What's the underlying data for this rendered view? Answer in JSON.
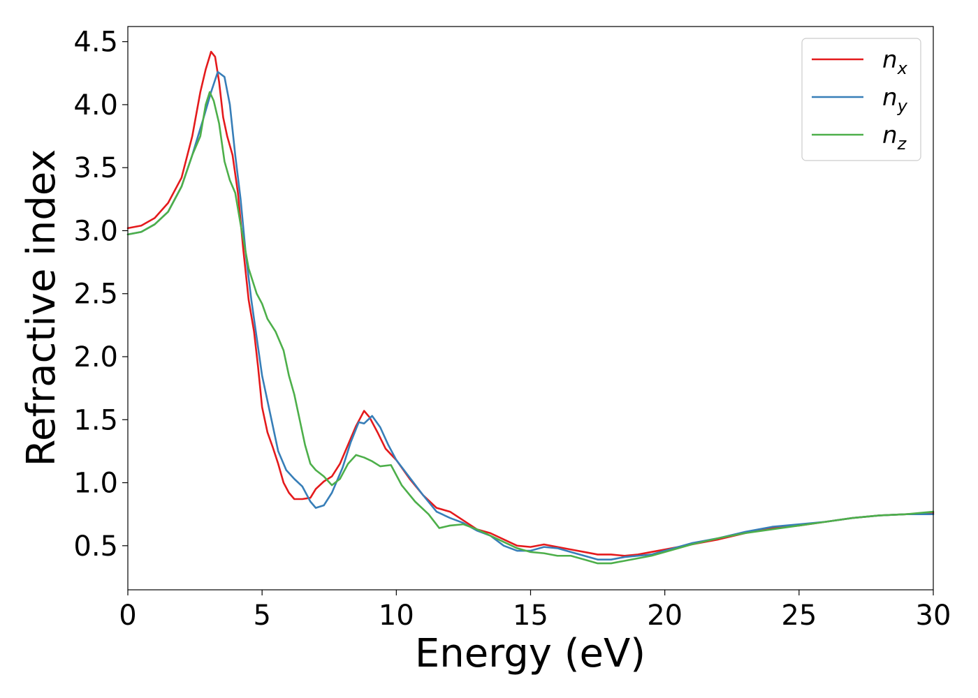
{
  "chart_data": {
    "type": "line",
    "title": "",
    "xlabel": "Energy (eV)",
    "ylabel": "Refractive index",
    "xlim": [
      0,
      30
    ],
    "ylim": [
      0.15,
      4.62
    ],
    "x_ticks": [
      0,
      5,
      10,
      15,
      20,
      25,
      30
    ],
    "y_ticks": [
      0.5,
      1.0,
      1.5,
      2.0,
      2.5,
      3.0,
      3.5,
      4.0,
      4.5
    ],
    "x_tick_labels": [
      "0",
      "5",
      "10",
      "15",
      "20",
      "25",
      "30"
    ],
    "y_tick_labels": [
      "0.5",
      "1.0",
      "1.5",
      "2.0",
      "2.5",
      "3.0",
      "3.5",
      "4.0",
      "4.5"
    ],
    "grid": false,
    "legend_position": "top-right",
    "series": [
      {
        "name": "n_x",
        "legend_base": "n",
        "legend_sub": "x",
        "color": "#e41a1c",
        "points": [
          [
            0,
            3.02
          ],
          [
            0.5,
            3.04
          ],
          [
            1,
            3.1
          ],
          [
            1.5,
            3.22
          ],
          [
            2,
            3.42
          ],
          [
            2.4,
            3.75
          ],
          [
            2.7,
            4.1
          ],
          [
            2.9,
            4.28
          ],
          [
            3.1,
            4.42
          ],
          [
            3.25,
            4.38
          ],
          [
            3.4,
            4.18
          ],
          [
            3.55,
            3.9
          ],
          [
            3.7,
            3.75
          ],
          [
            3.9,
            3.6
          ],
          [
            4.1,
            3.3
          ],
          [
            4.3,
            2.85
          ],
          [
            4.5,
            2.45
          ],
          [
            4.7,
            2.2
          ],
          [
            4.85,
            1.92
          ],
          [
            5.0,
            1.6
          ],
          [
            5.2,
            1.4
          ],
          [
            5.4,
            1.28
          ],
          [
            5.6,
            1.15
          ],
          [
            5.8,
            1.0
          ],
          [
            6.0,
            0.92
          ],
          [
            6.2,
            0.87
          ],
          [
            6.5,
            0.87
          ],
          [
            6.8,
            0.88
          ],
          [
            7.0,
            0.95
          ],
          [
            7.3,
            1.01
          ],
          [
            7.6,
            1.05
          ],
          [
            7.9,
            1.15
          ],
          [
            8.2,
            1.3
          ],
          [
            8.5,
            1.45
          ],
          [
            8.8,
            1.57
          ],
          [
            9.0,
            1.52
          ],
          [
            9.3,
            1.4
          ],
          [
            9.6,
            1.27
          ],
          [
            10.0,
            1.18
          ],
          [
            10.5,
            1.03
          ],
          [
            11.0,
            0.9
          ],
          [
            11.5,
            0.8
          ],
          [
            12.0,
            0.77
          ],
          [
            12.5,
            0.7
          ],
          [
            13.0,
            0.63
          ],
          [
            13.5,
            0.6
          ],
          [
            14.0,
            0.55
          ],
          [
            14.5,
            0.5
          ],
          [
            15.0,
            0.49
          ],
          [
            15.5,
            0.51
          ],
          [
            16.0,
            0.49
          ],
          [
            16.5,
            0.47
          ],
          [
            17.0,
            0.45
          ],
          [
            17.5,
            0.43
          ],
          [
            18.0,
            0.43
          ],
          [
            18.5,
            0.42
          ],
          [
            19.0,
            0.43
          ],
          [
            19.5,
            0.45
          ],
          [
            20.0,
            0.47
          ],
          [
            21,
            0.51
          ],
          [
            22,
            0.55
          ],
          [
            23,
            0.6
          ],
          [
            24,
            0.64
          ],
          [
            25,
            0.66
          ],
          [
            26,
            0.69
          ],
          [
            27,
            0.72
          ],
          [
            28,
            0.74
          ],
          [
            29,
            0.75
          ],
          [
            30,
            0.76
          ]
        ]
      },
      {
        "name": "n_y",
        "legend_base": "n",
        "legend_sub": "y",
        "color": "#377eb8",
        "points": [
          [
            0,
            2.97
          ],
          [
            0.5,
            2.99
          ],
          [
            1,
            3.05
          ],
          [
            1.5,
            3.15
          ],
          [
            2,
            3.35
          ],
          [
            2.4,
            3.6
          ],
          [
            2.8,
            3.88
          ],
          [
            3.1,
            4.1
          ],
          [
            3.35,
            4.26
          ],
          [
            3.6,
            4.22
          ],
          [
            3.8,
            4.0
          ],
          [
            4.0,
            3.6
          ],
          [
            4.2,
            3.25
          ],
          [
            4.4,
            2.8
          ],
          [
            4.6,
            2.45
          ],
          [
            4.8,
            2.15
          ],
          [
            5.0,
            1.85
          ],
          [
            5.2,
            1.65
          ],
          [
            5.4,
            1.45
          ],
          [
            5.6,
            1.25
          ],
          [
            5.9,
            1.1
          ],
          [
            6.2,
            1.03
          ],
          [
            6.5,
            0.97
          ],
          [
            6.8,
            0.85
          ],
          [
            7.0,
            0.8
          ],
          [
            7.3,
            0.82
          ],
          [
            7.6,
            0.92
          ],
          [
            8.0,
            1.12
          ],
          [
            8.3,
            1.32
          ],
          [
            8.6,
            1.48
          ],
          [
            8.8,
            1.47
          ],
          [
            9.1,
            1.53
          ],
          [
            9.4,
            1.44
          ],
          [
            9.7,
            1.3
          ],
          [
            10.0,
            1.18
          ],
          [
            10.5,
            1.04
          ],
          [
            11.0,
            0.9
          ],
          [
            11.5,
            0.77
          ],
          [
            12.0,
            0.72
          ],
          [
            12.5,
            0.68
          ],
          [
            13.0,
            0.62
          ],
          [
            13.5,
            0.58
          ],
          [
            14.0,
            0.5
          ],
          [
            14.5,
            0.46
          ],
          [
            15.0,
            0.46
          ],
          [
            15.5,
            0.49
          ],
          [
            16.0,
            0.48
          ],
          [
            16.5,
            0.45
          ],
          [
            17.0,
            0.42
          ],
          [
            17.5,
            0.39
          ],
          [
            18.0,
            0.39
          ],
          [
            18.5,
            0.41
          ],
          [
            19.0,
            0.42
          ],
          [
            19.5,
            0.43
          ],
          [
            20.0,
            0.46
          ],
          [
            21,
            0.52
          ],
          [
            22,
            0.56
          ],
          [
            23,
            0.61
          ],
          [
            24,
            0.65
          ],
          [
            25,
            0.67
          ],
          [
            26,
            0.69
          ],
          [
            27,
            0.72
          ],
          [
            28,
            0.74
          ],
          [
            29,
            0.75
          ],
          [
            30,
            0.75
          ]
        ]
      },
      {
        "name": "n_z",
        "legend_base": "n",
        "legend_sub": "z",
        "color": "#4daf4a",
        "points": [
          [
            0,
            2.97
          ],
          [
            0.5,
            2.99
          ],
          [
            1,
            3.05
          ],
          [
            1.5,
            3.15
          ],
          [
            2,
            3.35
          ],
          [
            2.4,
            3.6
          ],
          [
            2.7,
            3.75
          ],
          [
            2.9,
            4.0
          ],
          [
            3.05,
            4.1
          ],
          [
            3.2,
            4.03
          ],
          [
            3.4,
            3.85
          ],
          [
            3.6,
            3.55
          ],
          [
            3.8,
            3.4
          ],
          [
            4.0,
            3.3
          ],
          [
            4.2,
            3.05
          ],
          [
            4.5,
            2.7
          ],
          [
            4.8,
            2.5
          ],
          [
            5.0,
            2.42
          ],
          [
            5.2,
            2.3
          ],
          [
            5.5,
            2.2
          ],
          [
            5.8,
            2.05
          ],
          [
            6.0,
            1.85
          ],
          [
            6.2,
            1.7
          ],
          [
            6.4,
            1.5
          ],
          [
            6.6,
            1.3
          ],
          [
            6.8,
            1.15
          ],
          [
            7.0,
            1.1
          ],
          [
            7.3,
            1.05
          ],
          [
            7.6,
            0.98
          ],
          [
            7.9,
            1.03
          ],
          [
            8.2,
            1.15
          ],
          [
            8.5,
            1.22
          ],
          [
            8.8,
            1.2
          ],
          [
            9.1,
            1.17
          ],
          [
            9.4,
            1.13
          ],
          [
            9.8,
            1.14
          ],
          [
            10.2,
            0.98
          ],
          [
            10.7,
            0.85
          ],
          [
            11.2,
            0.75
          ],
          [
            11.6,
            0.64
          ],
          [
            12.0,
            0.66
          ],
          [
            12.5,
            0.67
          ],
          [
            13.0,
            0.63
          ],
          [
            13.5,
            0.58
          ],
          [
            14.0,
            0.53
          ],
          [
            14.5,
            0.48
          ],
          [
            15.0,
            0.45
          ],
          [
            15.5,
            0.44
          ],
          [
            16.0,
            0.42
          ],
          [
            16.5,
            0.42
          ],
          [
            17.0,
            0.39
          ],
          [
            17.5,
            0.36
          ],
          [
            18.0,
            0.36
          ],
          [
            18.5,
            0.38
          ],
          [
            19.0,
            0.4
          ],
          [
            19.5,
            0.42
          ],
          [
            20.0,
            0.45
          ],
          [
            21,
            0.51
          ],
          [
            22,
            0.56
          ],
          [
            23,
            0.6
          ],
          [
            24,
            0.63
          ],
          [
            25,
            0.66
          ],
          [
            26,
            0.69
          ],
          [
            27,
            0.72
          ],
          [
            28,
            0.74
          ],
          [
            29,
            0.75
          ],
          [
            30,
            0.77
          ]
        ]
      }
    ]
  }
}
